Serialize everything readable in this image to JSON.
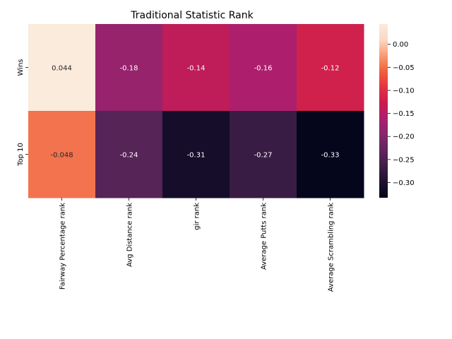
{
  "chart_data": {
    "type": "heatmap",
    "title": "Traditional Statistic Rank",
    "rows": [
      "Wins",
      "Top 10"
    ],
    "columns": [
      "Fairway Percentage rank",
      "Avg Distance rank",
      "gir rank",
      "Average Putts rank",
      "Average Scrambling rank"
    ],
    "values": [
      [
        0.044,
        -0.18,
        -0.14,
        -0.16,
        -0.12
      ],
      [
        -0.048,
        -0.24,
        -0.31,
        -0.27,
        -0.33
      ]
    ],
    "value_labels": [
      [
        "0.044",
        "-0.18",
        "-0.14",
        "-0.16",
        "-0.12"
      ],
      [
        "-0.048",
        "-0.24",
        "-0.31",
        "-0.27",
        "-0.33"
      ]
    ],
    "colorbar": {
      "vmin": -0.333,
      "vmax": 0.044,
      "ticks": [
        0.0,
        -0.05,
        -0.1,
        -0.15,
        -0.2,
        -0.25,
        -0.3
      ],
      "tick_labels": [
        "0.00",
        "−0.05",
        "−0.10",
        "−0.15",
        "−0.20",
        "−0.25",
        "−0.30"
      ]
    },
    "colormap": "rocket",
    "colormap_stops": [
      "#03051a",
      "#1e1130",
      "#3e1e48",
      "#60265c",
      "#86276b",
      "#ab1f6e",
      "#cb1b4f",
      "#e13342",
      "#f0603c",
      "#f69c73",
      "#fbd8c4",
      "#faebdd"
    ]
  }
}
